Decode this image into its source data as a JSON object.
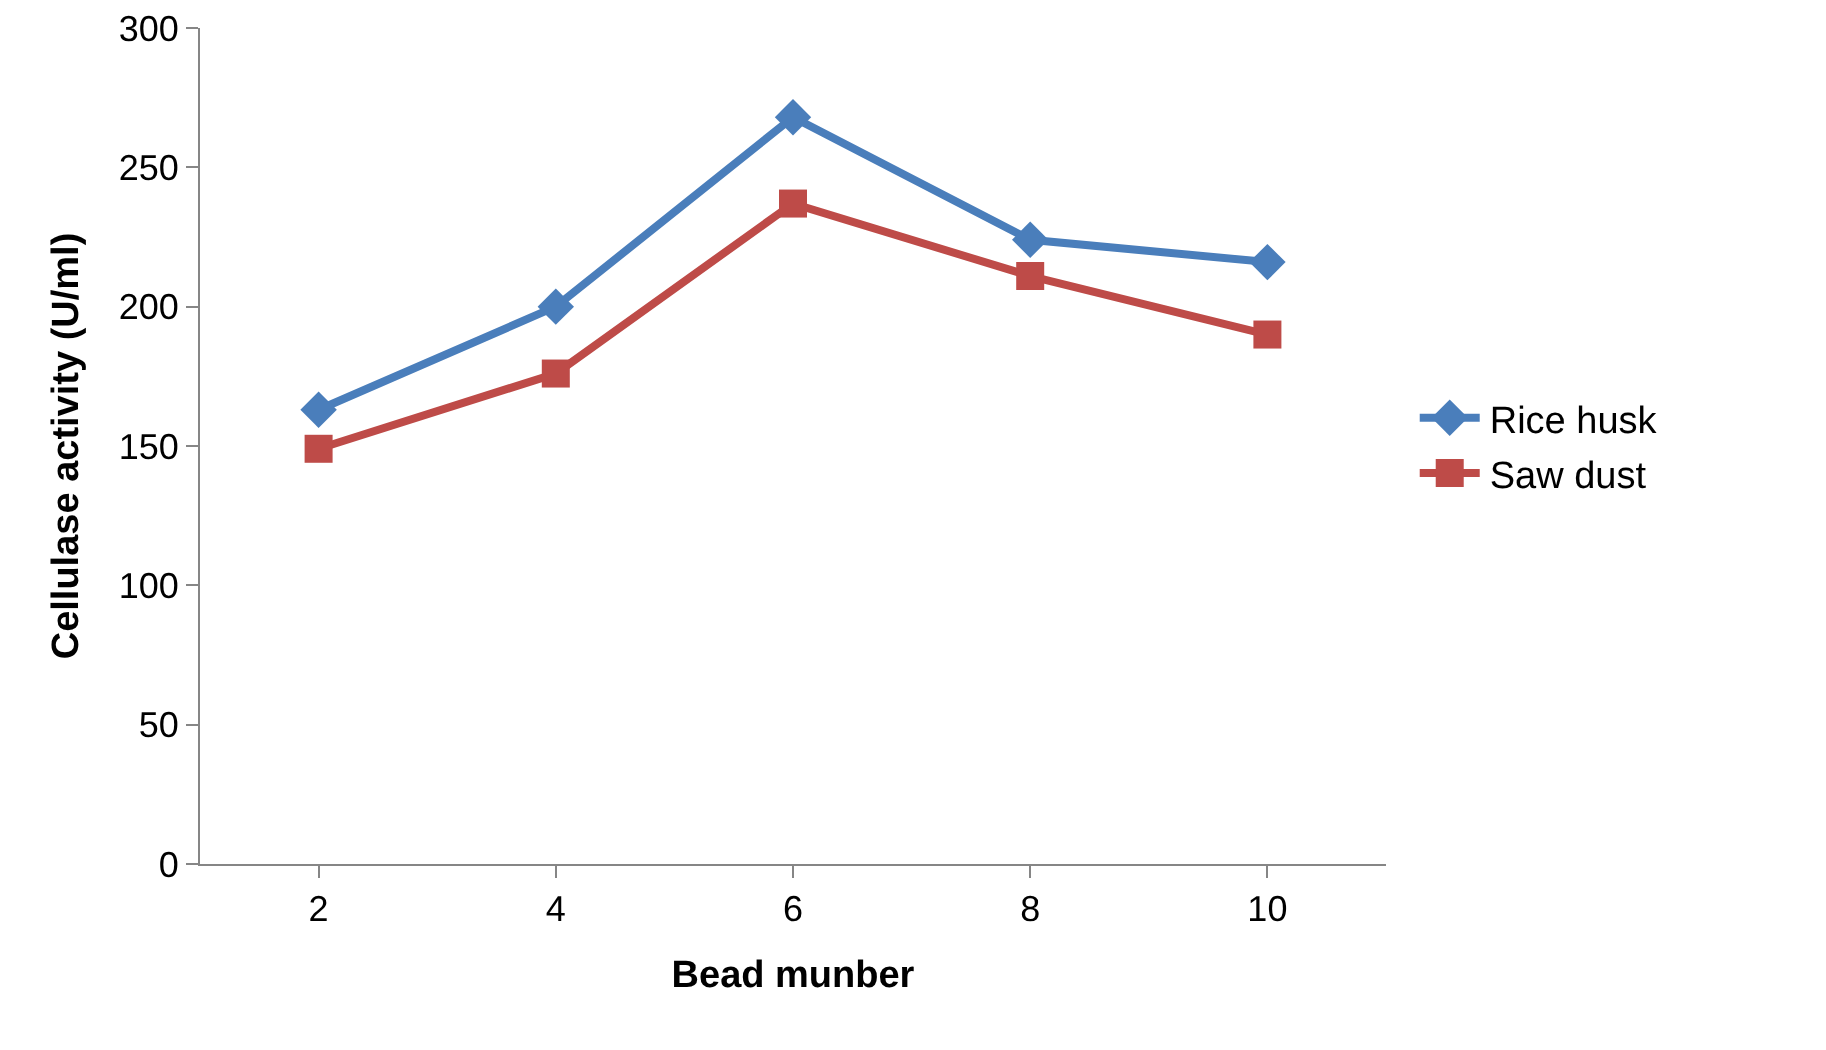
{
  "chart_data": {
    "type": "line",
    "xlabel": "Bead munber",
    "ylabel": "Cellulase activity (U/ml)",
    "categories": [
      "2",
      "4",
      "6",
      "8",
      "10"
    ],
    "series": [
      {
        "name": "Rice husk",
        "color": "#4a7ebb",
        "marker": "diamond",
        "values": [
          163,
          200,
          268,
          224,
          216
        ]
      },
      {
        "name": "Saw dust",
        "color": "#be4b48",
        "marker": "square",
        "values": [
          149,
          176,
          237,
          211,
          190
        ]
      }
    ],
    "ylim": [
      0,
      300
    ],
    "yticks": [
      0,
      50,
      100,
      150,
      200,
      250,
      300
    ],
    "grid": false,
    "legend": "right",
    "line_style": "solid"
  }
}
